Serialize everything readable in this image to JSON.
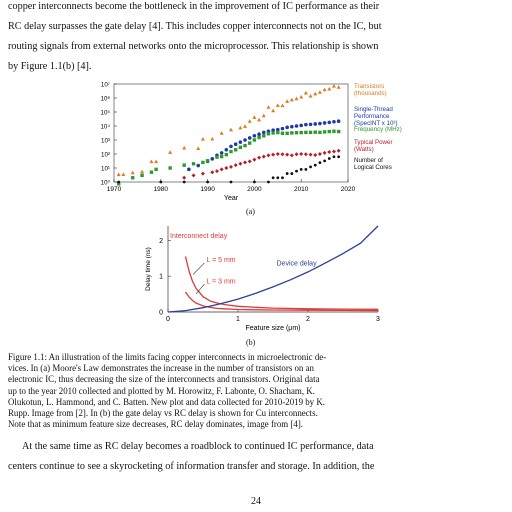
{
  "intro_lines": [
    "copper interconnects become the bottleneck in the improvement of IC performance as their",
    "RC delay surpasses the gate delay [4]. This includes copper interconnects not on the IC, but",
    "routing signals from external networks onto the microprocessor. This relationship is shown",
    "by Figure 1.1(b) [4]."
  ],
  "figure_a_label": "(a)",
  "figure_b_label": "(b)",
  "caption_lines": [
    "Figure 1.1: An illustration of the limits facing copper interconnects in microelectronic de-",
    "vices. In (a) Moore's Law demonstrates the increase in the number of transistors on an",
    "electronic IC, thus decreasing the size of the interconnects and transistors. Original data",
    "up to the year 2010 collected and plotted by M. Horowitz, F. Labonte, O. Shacham, K.",
    "Olukotun, L. Hammond, and C. Batten. New plot and data collected for 2010-2019 by K.",
    "Rupp. Image from [2]. In (b) the gate delay vs RC delay is shown for Cu interconnects.",
    "Note that as minimum feature size decreases, RC delay dominates, image from [4]."
  ],
  "outro_lines": [
    "At the same time as RC delay becomes a roadblock to continued IC performance, data",
    "centers continue to see a skyrocketing of information transfer and storage. In addition, the"
  ],
  "page_number": "24",
  "chart_data": [
    {
      "type": "scatter",
      "xlabel": "Year",
      "ylabel": "",
      "xlim": [
        1970,
        2020
      ],
      "ylim_log10": [
        0,
        7
      ],
      "y_scale": "log",
      "x_ticks": [
        "1970",
        "1980",
        "1990",
        "2000",
        "2010",
        "2020"
      ],
      "y_ticks": [
        "10⁰",
        "10¹",
        "10²",
        "10³",
        "10⁴",
        "10⁵",
        "10⁶",
        "10⁷"
      ],
      "legend_position": "right",
      "series": [
        {
          "name": "Transistors (thousands)",
          "legend_lines": [
            "Transistors",
            "(thousands)"
          ],
          "color": "#e07b1f",
          "points": [
            [
              1971,
              3.4
            ],
            [
              1972,
              3.5
            ],
            [
              1974,
              4.7
            ],
            [
              1976,
              5.5
            ],
            [
              1978,
              29
            ],
            [
              1979,
              29
            ],
            [
              1982,
              134
            ],
            [
              1985,
              275
            ],
            [
              1988,
              250
            ],
            [
              1989,
              1180
            ],
            [
              1991,
              1200
            ],
            [
              1993,
              3100
            ],
            [
              1995,
              5500
            ],
            [
              1997,
              7500
            ],
            [
              1998,
              9500
            ],
            [
              1999,
              22000
            ],
            [
              2000,
              42000
            ],
            [
              2001,
              28000
            ],
            [
              2002,
              55000
            ],
            [
              2003,
              220000
            ],
            [
              2004,
              125000
            ],
            [
              2005,
              300000
            ],
            [
              2006,
              290000
            ],
            [
              2007,
              580000
            ],
            [
              2008,
              750000
            ],
            [
              2009,
              900000
            ],
            [
              2010,
              1200000
            ],
            [
              2011,
              2300000
            ],
            [
              2012,
              1400000
            ],
            [
              2013,
              2000000
            ],
            [
              2014,
              2600000
            ],
            [
              2015,
              4000000
            ],
            [
              2016,
              4500000
            ],
            [
              2017,
              7200000
            ],
            [
              2018,
              6000000
            ]
          ]
        },
        {
          "name": "Single-Thread Performance (SpecINT x 10³)",
          "legend_lines": [
            "Single-Thread",
            "Performance",
            "(SpecINT x 10³)"
          ],
          "color": "#1f3aa8",
          "points": [
            [
              1986,
              8
            ],
            [
              1988,
              15
            ],
            [
              1990,
              30
            ],
            [
              1991,
              45
            ],
            [
              1992,
              80
            ],
            [
              1993,
              120
            ],
            [
              1994,
              200
            ],
            [
              1995,
              350
            ],
            [
              1996,
              500
            ],
            [
              1997,
              700
            ],
            [
              1998,
              1000
            ],
            [
              1999,
              1400
            ],
            [
              2000,
              2000
            ],
            [
              2001,
              2600
            ],
            [
              2002,
              3500
            ],
            [
              2003,
              4200
            ],
            [
              2004,
              5000
            ],
            [
              2005,
              5500
            ],
            [
              2006,
              6500
            ],
            [
              2007,
              8000
            ],
            [
              2008,
              9000
            ],
            [
              2009,
              10000
            ],
            [
              2010,
              11000
            ],
            [
              2011,
              12500
            ],
            [
              2012,
              13000
            ],
            [
              2013,
              14000
            ],
            [
              2014,
              15000
            ],
            [
              2015,
              16500
            ],
            [
              2016,
              18000
            ],
            [
              2017,
              20000
            ],
            [
              2018,
              22000
            ]
          ]
        },
        {
          "name": "Frequency (MHz)",
          "legend_lines": [
            "Frequency (MHz)"
          ],
          "color": "#2e9a2e",
          "points": [
            [
              1971,
              0.75
            ],
            [
              1974,
              2
            ],
            [
              1976,
              3
            ],
            [
              1978,
              5
            ],
            [
              1979,
              8
            ],
            [
              1982,
              10
            ],
            [
              1985,
              16
            ],
            [
              1987,
              20
            ],
            [
              1989,
              25
            ],
            [
              1990,
              33
            ],
            [
              1992,
              60
            ],
            [
              1993,
              66
            ],
            [
              1994,
              90
            ],
            [
              1995,
              150
            ],
            [
              1996,
              200
            ],
            [
              1997,
              300
            ],
            [
              1998,
              400
            ],
            [
              1999,
              600
            ],
            [
              2000,
              1000
            ],
            [
              2001,
              1500
            ],
            [
              2002,
              2000
            ],
            [
              2003,
              2800
            ],
            [
              2004,
              3200
            ],
            [
              2005,
              3400
            ],
            [
              2006,
              3000
            ],
            [
              2007,
              3000
            ],
            [
              2008,
              3200
            ],
            [
              2009,
              3300
            ],
            [
              2010,
              3400
            ],
            [
              2011,
              3500
            ],
            [
              2012,
              3500
            ],
            [
              2013,
              3600
            ],
            [
              2014,
              3500
            ],
            [
              2015,
              3800
            ],
            [
              2016,
              4000
            ],
            [
              2017,
              4200
            ],
            [
              2018,
              4000
            ]
          ]
        },
        {
          "name": "Typical Power (Watts)",
          "legend_lines": [
            "Typical Power",
            "(Watts)"
          ],
          "color": "#b51f2a",
          "points": [
            [
              1985,
              2
            ],
            [
              1987,
              3
            ],
            [
              1989,
              4
            ],
            [
              1991,
              5
            ],
            [
              1992,
              6
            ],
            [
              1993,
              8
            ],
            [
              1994,
              10
            ],
            [
              1995,
              12
            ],
            [
              1996,
              16
            ],
            [
              1997,
              20
            ],
            [
              1998,
              25
            ],
            [
              1999,
              30
            ],
            [
              2000,
              40
            ],
            [
              2001,
              55
            ],
            [
              2002,
              65
            ],
            [
              2003,
              80
            ],
            [
              2004,
              90
            ],
            [
              2005,
              100
            ],
            [
              2006,
              95
            ],
            [
              2007,
              90
            ],
            [
              2008,
              80
            ],
            [
              2009,
              95
            ],
            [
              2010,
              100
            ],
            [
              2011,
              95
            ],
            [
              2012,
              90
            ],
            [
              2013,
              85
            ],
            [
              2014,
              100
            ],
            [
              2015,
              120
            ],
            [
              2016,
              140
            ],
            [
              2017,
              150
            ],
            [
              2018,
              170
            ]
          ]
        },
        {
          "name": "Number of Logical Cores",
          "legend_lines": [
            "Number of",
            "Logical Cores"
          ],
          "color": "#111111",
          "points": [
            [
              1971,
              1
            ],
            [
              1980,
              1
            ],
            [
              1985,
              1
            ],
            [
              1990,
              1
            ],
            [
              1995,
              1
            ],
            [
              2000,
              1
            ],
            [
              2003,
              1
            ],
            [
              2004,
              2
            ],
            [
              2005,
              2
            ],
            [
              2006,
              2
            ],
            [
              2007,
              4
            ],
            [
              2008,
              4
            ],
            [
              2009,
              6
            ],
            [
              2010,
              8
            ],
            [
              2011,
              8
            ],
            [
              2012,
              12
            ],
            [
              2013,
              16
            ],
            [
              2014,
              24
            ],
            [
              2015,
              32
            ],
            [
              2016,
              48
            ],
            [
              2017,
              64
            ],
            [
              2018,
              64
            ]
          ]
        }
      ]
    },
    {
      "type": "line",
      "xlabel": "Feature size (μm)",
      "ylabel": "Delay time (ns)",
      "xlim": [
        0,
        3
      ],
      "ylim": [
        0,
        2.4
      ],
      "x_ticks": [
        "0",
        "1",
        "2",
        "3"
      ],
      "y_ticks": [
        "0",
        "1",
        "2"
      ],
      "annotations": [
        {
          "text": "Interconnect delay",
          "color": "#e03a3a"
        },
        {
          "text": "L = 5 mm",
          "color": "#e03a3a"
        },
        {
          "text": "L = 3 mm",
          "color": "#e03a3a"
        },
        {
          "text": "Device delay",
          "color": "#2a3f9c"
        }
      ],
      "series": [
        {
          "name": "Interconnect delay, L = 5 mm",
          "color": "#e03a3a",
          "x": [
            0.25,
            0.3,
            0.35,
            0.4,
            0.5,
            0.6,
            0.7,
            0.8,
            1.0,
            1.25,
            1.5,
            2.0,
            2.5,
            3.0
          ],
          "y": [
            1.55,
            1.15,
            0.86,
            0.66,
            0.43,
            0.31,
            0.25,
            0.21,
            0.16,
            0.13,
            0.11,
            0.09,
            0.08,
            0.075
          ]
        },
        {
          "name": "Interconnect delay, L = 3 mm",
          "color": "#e03a3a",
          "x": [
            0.25,
            0.3,
            0.35,
            0.4,
            0.5,
            0.6,
            0.7,
            0.8,
            1.0,
            1.25,
            1.5,
            2.0,
            2.5,
            3.0
          ],
          "y": [
            0.56,
            0.42,
            0.32,
            0.25,
            0.17,
            0.13,
            0.1,
            0.09,
            0.07,
            0.06,
            0.055,
            0.05,
            0.045,
            0.04
          ]
        },
        {
          "name": "Device delay",
          "color": "#2a3f9c",
          "x": [
            0,
            0.25,
            0.5,
            0.75,
            1.0,
            1.25,
            1.5,
            1.75,
            2.0,
            2.25,
            2.5,
            2.75,
            3.0
          ],
          "y": [
            0,
            0.04,
            0.12,
            0.23,
            0.36,
            0.52,
            0.7,
            0.9,
            1.12,
            1.37,
            1.63,
            1.92,
            2.4
          ]
        }
      ]
    }
  ]
}
